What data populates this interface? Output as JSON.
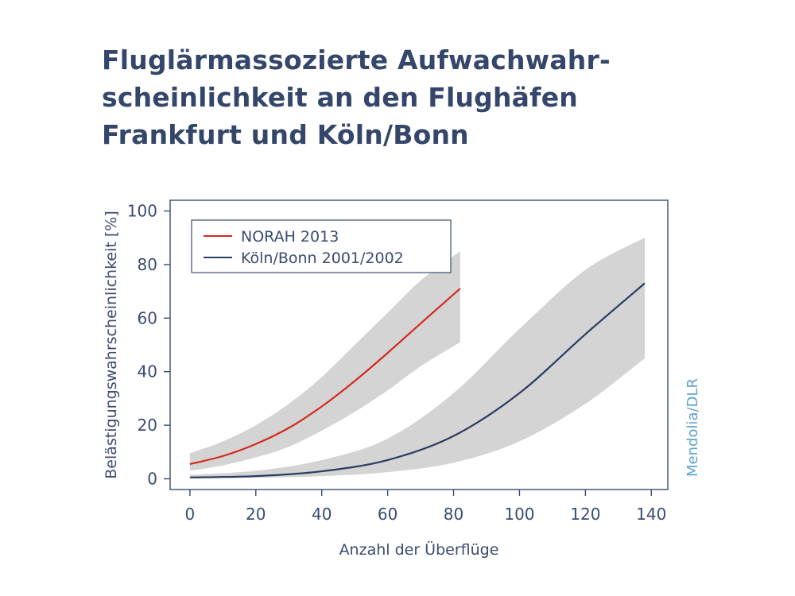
{
  "title_lines": [
    "Fluglärmassozierte Aufwachwahr-",
    "scheinlichkeit an den Flughäfen",
    "Frankfurt und Köln/Bonn"
  ],
  "credit": "Mendolia/DLR",
  "colors": {
    "text": "#34466a",
    "axis": "#3a4c70",
    "norah": "#d42a1e",
    "koeln_bonn": "#2b3c62",
    "band": "#d4d4d4",
    "credit": "#5ba3cc"
  },
  "chart_data": {
    "type": "line",
    "title": "Fluglärmassozierte Aufwachwahrscheinlichkeit an den Flughäfen Frankfurt und Köln/Bonn",
    "xlabel": "Anzahl der Überflüge",
    "ylabel": "Belästigungswahrscheinlichkeit [%]",
    "xlim": [
      -6,
      145
    ],
    "ylim": [
      -4,
      104
    ],
    "xticks": [
      0,
      20,
      40,
      60,
      80,
      100,
      120,
      140
    ],
    "yticks": [
      0,
      20,
      40,
      60,
      80,
      100
    ],
    "grid": false,
    "legend_position": "top-left",
    "series": [
      {
        "name": "NORAH 2013",
        "color": "#d42a1e",
        "x": [
          0,
          10,
          20,
          30,
          40,
          50,
          60,
          70,
          82
        ],
        "y": [
          5.5,
          8.5,
          13,
          19,
          27,
          36.5,
          47,
          58,
          71
        ],
        "band_upper": [
          9.5,
          14,
          20,
          28,
          38,
          50,
          62,
          74,
          85
        ],
        "band_lower": [
          3,
          5,
          8,
          12,
          18,
          25,
          33,
          42,
          51
        ]
      },
      {
        "name": "Köln/Bonn 2001/2002",
        "color": "#2b3c62",
        "x": [
          0,
          20,
          40,
          60,
          80,
          100,
          120,
          138
        ],
        "y": [
          0.5,
          1,
          2.8,
          7,
          16,
          32,
          54,
          73
        ],
        "band_upper": [
          1.5,
          3,
          7,
          15,
          32,
          56,
          78,
          90
        ],
        "band_lower": [
          0.2,
          0.4,
          1,
          2.5,
          6,
          14,
          28,
          45
        ]
      }
    ]
  }
}
